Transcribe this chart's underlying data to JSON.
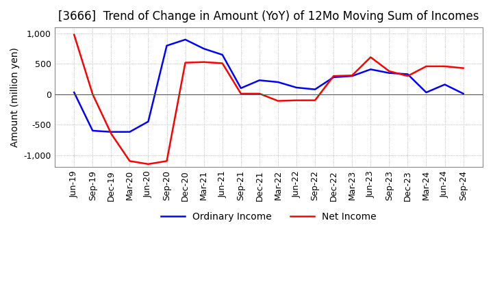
{
  "title": "[3666]  Trend of Change in Amount (YoY) of 12Mo Moving Sum of Incomes",
  "ylabel": "Amount (million yen)",
  "x_labels": [
    "Jun-19",
    "Sep-19",
    "Dec-19",
    "Mar-20",
    "Jun-20",
    "Sep-20",
    "Dec-20",
    "Mar-21",
    "Jun-21",
    "Sep-21",
    "Dec-21",
    "Mar-22",
    "Jun-22",
    "Sep-22",
    "Dec-22",
    "Mar-23",
    "Jun-23",
    "Sep-23",
    "Dec-23",
    "Mar-24",
    "Jun-24",
    "Sep-24"
  ],
  "ordinary_income": [
    30,
    -600,
    -620,
    -620,
    -450,
    800,
    900,
    750,
    650,
    100,
    230,
    200,
    110,
    80,
    280,
    300,
    410,
    350,
    330,
    30,
    160,
    10
  ],
  "net_income": [
    980,
    0,
    -650,
    -1100,
    -1150,
    -1100,
    520,
    530,
    510,
    10,
    10,
    -110,
    -100,
    -100,
    300,
    310,
    610,
    380,
    300,
    460,
    460,
    430
  ],
  "ordinary_color": "#0000ff",
  "net_color": "#ff0000",
  "ylim": [
    -1200,
    1100
  ],
  "yticks": [
    -1000,
    -500,
    0,
    500,
    1000
  ],
  "grid_color": "#aaaaaa",
  "background_color": "#ffffff",
  "title_fontsize": 12,
  "axis_fontsize": 10,
  "tick_fontsize": 9,
  "legend_fontsize": 10
}
